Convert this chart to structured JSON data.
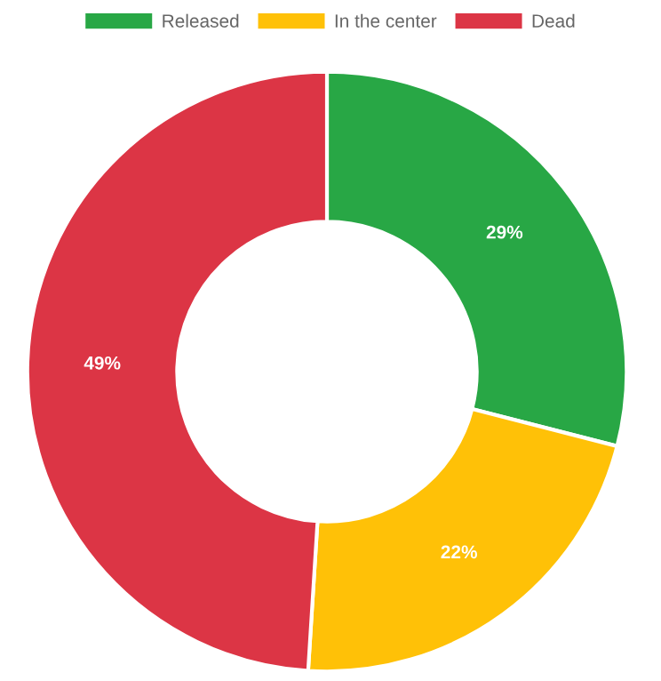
{
  "chart_data": {
    "type": "donut",
    "categories": [
      "Released",
      "In the center",
      "Dead"
    ],
    "values": [
      29,
      22,
      49
    ],
    "colors": [
      "#28a745",
      "#ffc107",
      "#dc3545"
    ],
    "value_labels": [
      "29%",
      "22%",
      "49%"
    ],
    "legend": "top"
  }
}
